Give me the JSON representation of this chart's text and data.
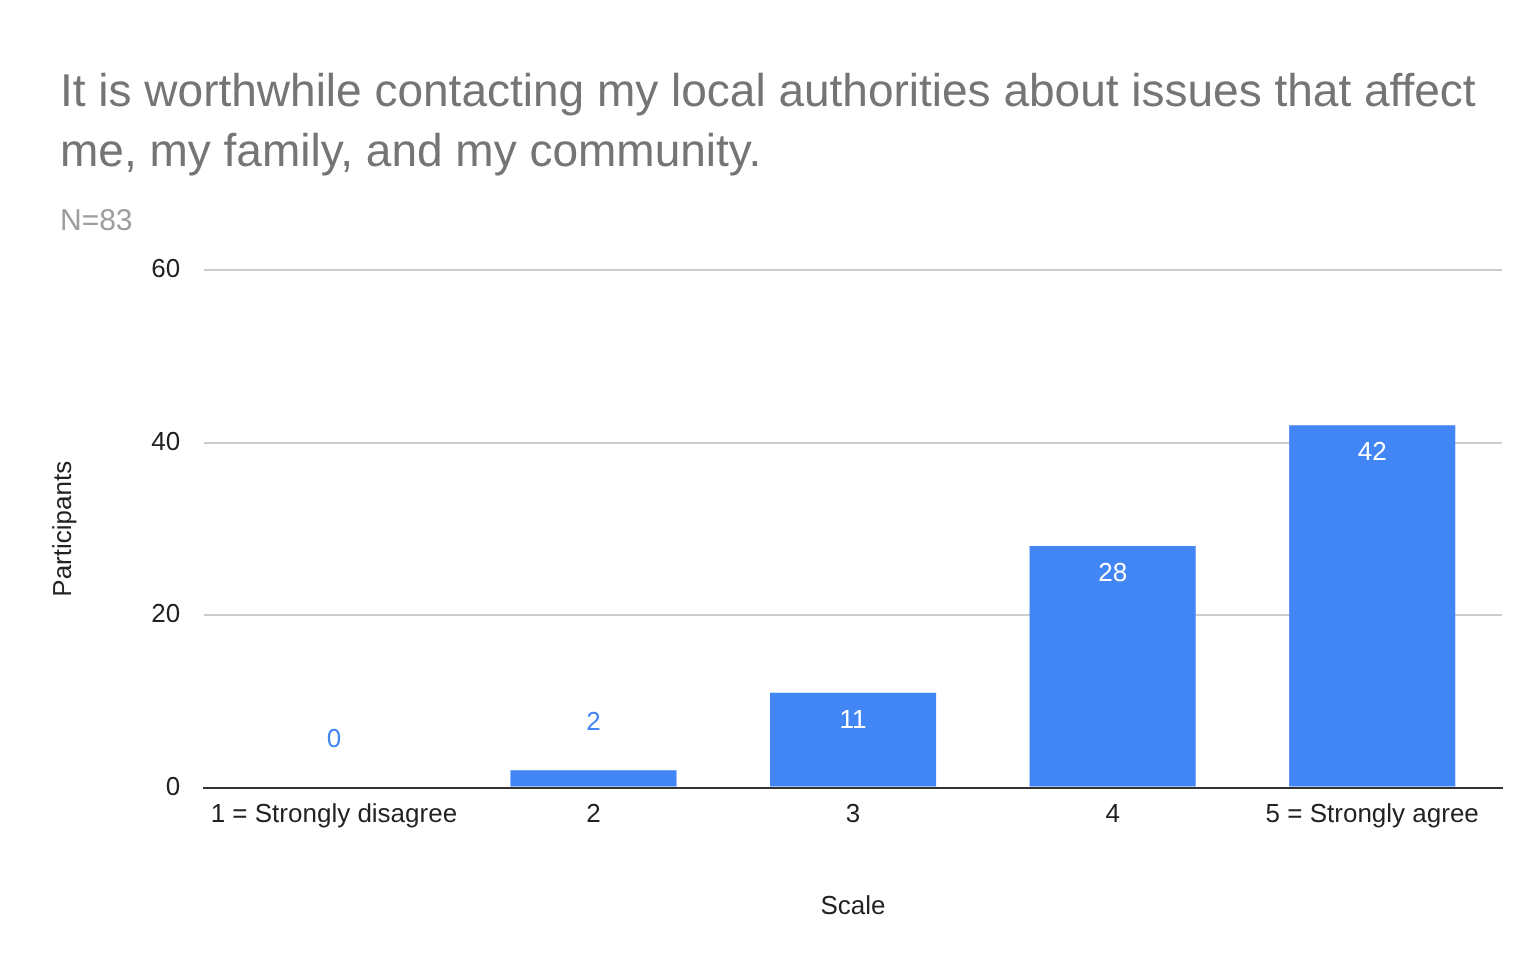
{
  "chart_data": {
    "type": "bar",
    "title": "It is worthwhile contacting my local authorities about issues that affect me, my family, and my community.",
    "subtitle": "N=83",
    "xlabel": "Scale",
    "ylabel": "Participants",
    "categories": [
      "1 = Strongly disagree",
      "2",
      "3",
      "4",
      "5 = Strongly agree"
    ],
    "values": [
      0,
      2,
      11,
      28,
      42
    ],
    "color": "#4285f4",
    "ylim": [
      0,
      60
    ],
    "yticks": [
      0,
      20,
      40,
      60
    ],
    "grid": "y",
    "legend": false,
    "data_labels": true
  }
}
